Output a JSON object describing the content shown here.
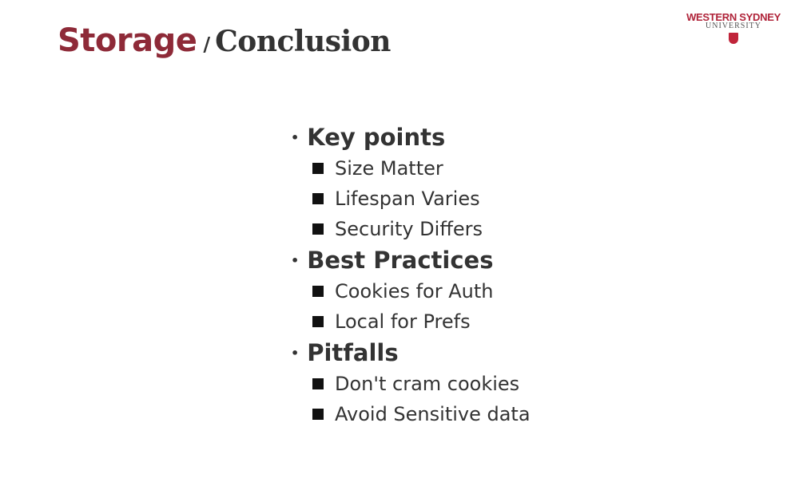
{
  "slide": {
    "title_main": "Storage",
    "title_separator": "/",
    "title_sub": "Conclusion"
  },
  "logo": {
    "line1": "WESTERN SYDNEY",
    "line2": "UNIVERSITY",
    "brand_color": "#8e2a38"
  },
  "sections": [
    {
      "heading": "Key points",
      "items": [
        "Size Matter",
        "Lifespan Varies",
        "Security Differs"
      ]
    },
    {
      "heading": "Best Practices",
      "items": [
        "Cookies for Auth",
        "Local for Prefs"
      ]
    },
    {
      "heading": "Pitfalls",
      "items": [
        "Don't cram cookies",
        "Avoid Sensitive data"
      ]
    }
  ]
}
